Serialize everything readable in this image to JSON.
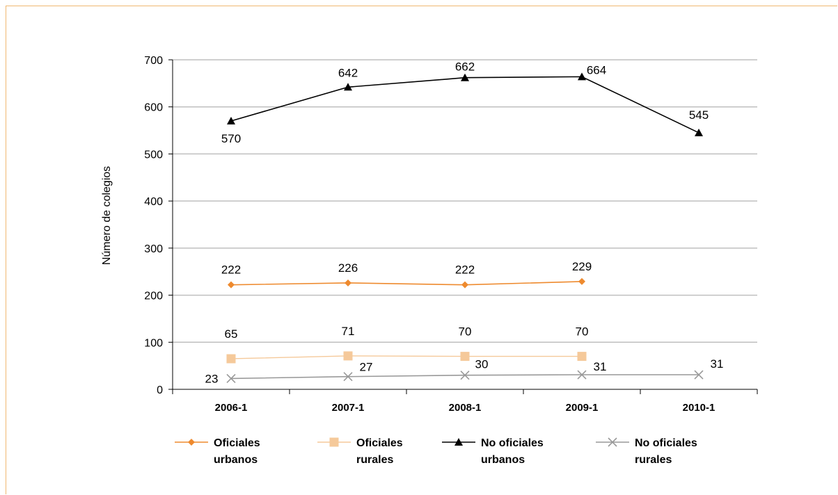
{
  "chart_data": {
    "type": "line",
    "ylabel": "Número de colegios",
    "xlabel": "",
    "ylim": [
      0,
      700
    ],
    "yticks": [
      0,
      100,
      200,
      300,
      400,
      500,
      600,
      700
    ],
    "grid": true,
    "legend_position": "bottom",
    "categories": [
      "2006-1",
      "2007-1",
      "2008-1",
      "2009-1",
      "2010-1"
    ],
    "series": [
      {
        "name": "Oficiales urbanos",
        "legend_lines": [
          "Oficiales",
          "urbanos"
        ],
        "values": [
          222,
          226,
          222,
          229,
          null
        ],
        "color": "#ee8a2e",
        "marker": "diamond",
        "label_pos": "above"
      },
      {
        "name": "Oficiales rurales",
        "legend_lines": [
          "Oficiales",
          "rurales"
        ],
        "values": [
          65,
          71,
          70,
          70,
          null
        ],
        "color": "#f5c99a",
        "marker": "square",
        "label_pos": "above"
      },
      {
        "name": "No oficiales urbanos",
        "legend_lines": [
          "No oficiales",
          "urbanos"
        ],
        "values": [
          570,
          642,
          662,
          664,
          545
        ],
        "color": "#000000",
        "marker": "triangle",
        "label_pos": "mixed"
      },
      {
        "name": "No oficiales rurales",
        "legend_lines": [
          "No oficiales",
          "rurales"
        ],
        "values": [
          23,
          27,
          30,
          31,
          31
        ],
        "color": "#999999",
        "marker": "x",
        "label_pos": "mixed"
      }
    ]
  }
}
